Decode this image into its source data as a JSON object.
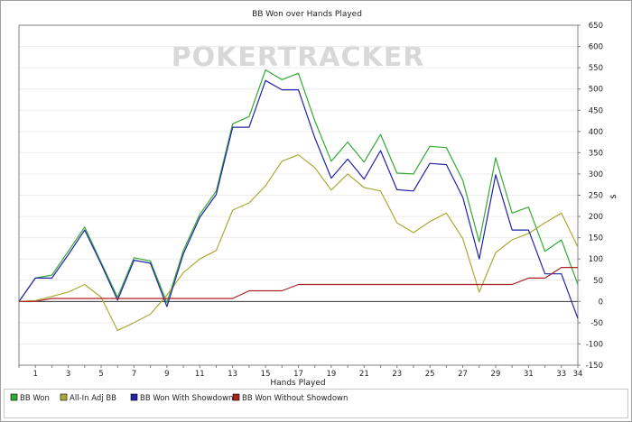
{
  "chart_data": {
    "type": "line",
    "title": "BB Won over Hands Played",
    "xlabel": "Hands Played",
    "ylabel": "$",
    "watermark": "POKERTRACKER",
    "xlim": [
      0,
      34
    ],
    "ylim": [
      -150,
      650
    ],
    "x_ticks": [
      1,
      3,
      5,
      7,
      9,
      11,
      13,
      15,
      17,
      19,
      21,
      23,
      25,
      27,
      29,
      31,
      33,
      34
    ],
    "y_ticks": [
      -150,
      -100,
      -50,
      0,
      50,
      100,
      150,
      200,
      250,
      300,
      350,
      400,
      450,
      500,
      550,
      600,
      650
    ],
    "grid": "horizontal",
    "legend_position": "bottom",
    "x": [
      0,
      1,
      2,
      3,
      4,
      5,
      6,
      7,
      8,
      9,
      10,
      11,
      12,
      13,
      14,
      15,
      16,
      17,
      18,
      19,
      20,
      21,
      22,
      23,
      24,
      25,
      26,
      27,
      28,
      29,
      30,
      31,
      32,
      33,
      34
    ],
    "series": [
      {
        "name": "BB Won",
        "color": "#33aa33",
        "values": [
          0,
          55,
          62,
          118,
          175,
          92,
          10,
          103,
          95,
          -3,
          120,
          205,
          260,
          418,
          435,
          545,
          522,
          537,
          425,
          330,
          375,
          328,
          393,
          302,
          300,
          365,
          362,
          285,
          140,
          338,
          208,
          222,
          118,
          145,
          40
        ]
      },
      {
        "name": "All-In Adj BB",
        "color": "#aaaa33",
        "values": [
          0,
          2,
          12,
          22,
          40,
          10,
          -68,
          -50,
          -30,
          15,
          68,
          100,
          120,
          215,
          232,
          272,
          330,
          345,
          315,
          262,
          300,
          268,
          260,
          185,
          162,
          188,
          208,
          148,
          22,
          115,
          145,
          160,
          185,
          208,
          128
        ]
      },
      {
        "name": "BB Won With Showdown",
        "color": "#2222aa",
        "values": [
          0,
          55,
          55,
          110,
          168,
          88,
          3,
          97,
          90,
          -12,
          112,
          198,
          252,
          410,
          410,
          520,
          498,
          498,
          385,
          290,
          335,
          288,
          355,
          263,
          260,
          325,
          322,
          245,
          100,
          298,
          168,
          168,
          65,
          65,
          -40
        ]
      },
      {
        "name": "BB Won Without Showdown",
        "color": "#aa2222",
        "values": [
          0,
          0,
          7,
          7,
          7,
          7,
          7,
          7,
          7,
          7,
          7,
          7,
          7,
          7,
          25,
          25,
          25,
          40,
          40,
          40,
          40,
          40,
          40,
          40,
          40,
          40,
          40,
          40,
          40,
          40,
          40,
          55,
          55,
          80,
          80
        ]
      }
    ]
  }
}
